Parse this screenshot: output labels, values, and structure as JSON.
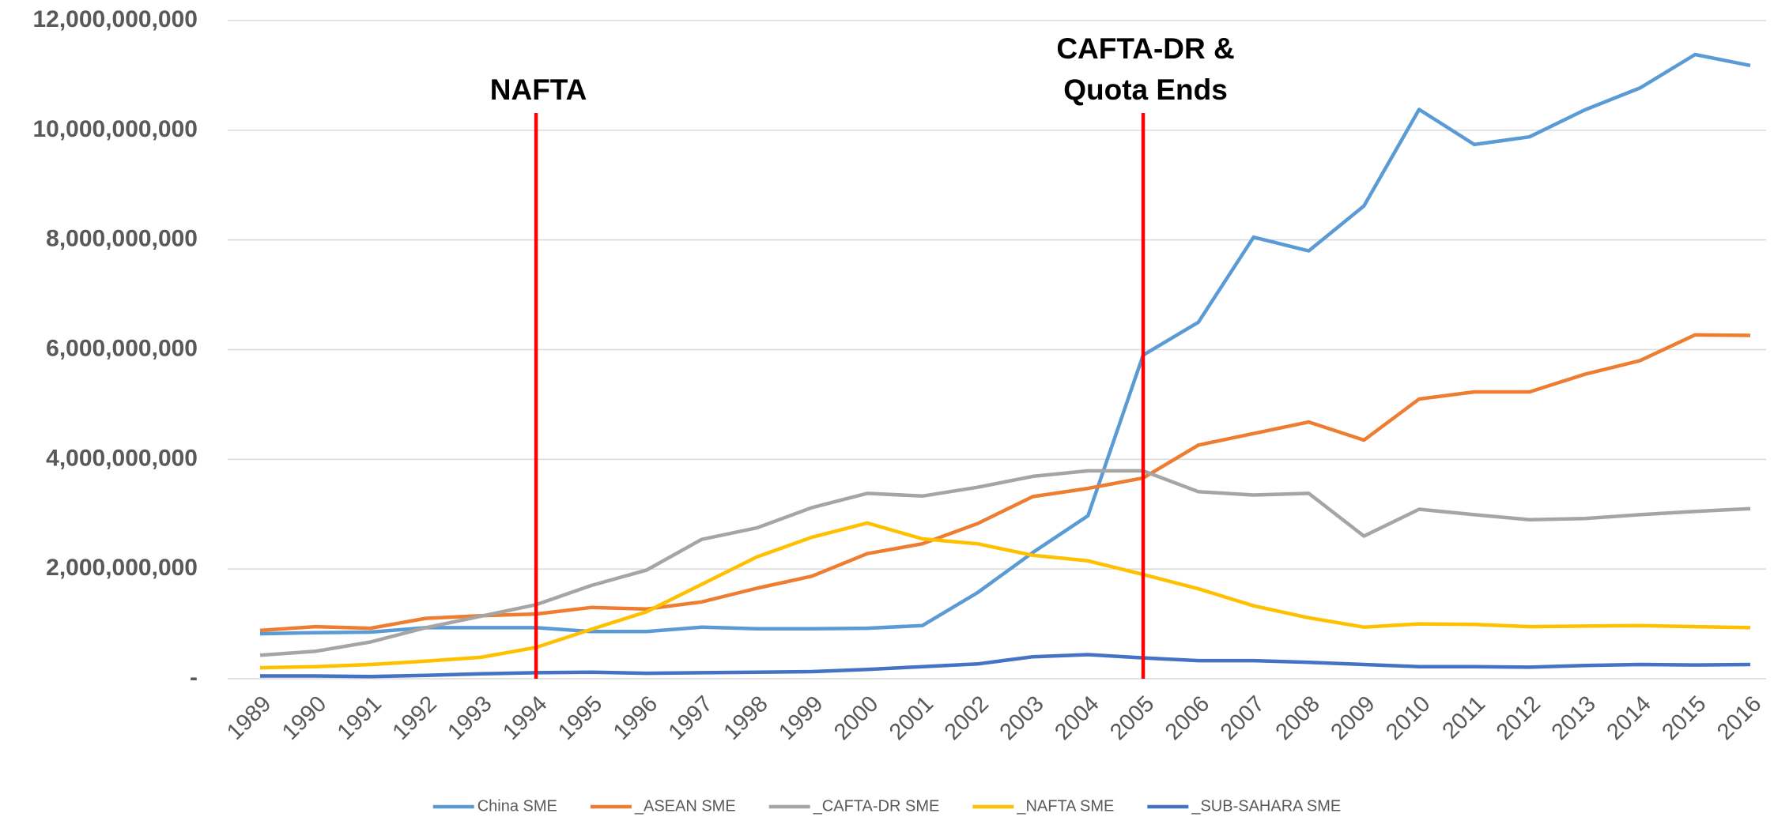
{
  "chart_data": {
    "type": "line",
    "categories": [
      "1989",
      "1990",
      "1991",
      "1992",
      "1993",
      "1994",
      "1995",
      "1996",
      "1997",
      "1998",
      "1999",
      "2000",
      "2001",
      "2002",
      "2003",
      "2004",
      "2005",
      "2006",
      "2007",
      "2008",
      "2009",
      "2010",
      "2011",
      "2012",
      "2013",
      "2014",
      "2015",
      "2016"
    ],
    "series": [
      {
        "name": "China SME",
        "color": "#5b9bd5",
        "values": [
          820000000,
          840000000,
          850000000,
          930000000,
          930000000,
          930000000,
          860000000,
          860000000,
          940000000,
          910000000,
          910000000,
          920000000,
          970000000,
          1570000000,
          2300000000,
          2970000000,
          5900000000,
          6500000000,
          8050000000,
          7800000000,
          8620000000,
          10380000000,
          9740000000,
          9880000000,
          10370000000,
          10770000000,
          11380000000,
          11180000000
        ]
      },
      {
        "name": "_ASEAN SME",
        "color": "#ed7d31",
        "values": [
          880000000,
          950000000,
          920000000,
          1100000000,
          1150000000,
          1180000000,
          1300000000,
          1270000000,
          1400000000,
          1650000000,
          1870000000,
          2280000000,
          2460000000,
          2830000000,
          3320000000,
          3470000000,
          3660000000,
          4260000000,
          4470000000,
          4680000000,
          4350000000,
          5100000000,
          5230000000,
          5230000000,
          5550000000,
          5800000000,
          6270000000,
          6260000000
        ]
      },
      {
        "name": "_CAFTA-DR SME",
        "color": "#a5a5a5",
        "values": [
          430000000,
          500000000,
          670000000,
          930000000,
          1140000000,
          1350000000,
          1700000000,
          1980000000,
          2540000000,
          2750000000,
          3120000000,
          3380000000,
          3330000000,
          3490000000,
          3690000000,
          3790000000,
          3790000000,
          3410000000,
          3350000000,
          3380000000,
          2600000000,
          3090000000,
          2990000000,
          2900000000,
          2920000000,
          2990000000,
          3050000000,
          3100000000
        ]
      },
      {
        "name": "_NAFTA SME",
        "color": "#ffc000",
        "values": [
          200000000,
          220000000,
          260000000,
          320000000,
          390000000,
          570000000,
          900000000,
          1220000000,
          1720000000,
          2220000000,
          2580000000,
          2840000000,
          2550000000,
          2460000000,
          2250000000,
          2150000000,
          1900000000,
          1640000000,
          1330000000,
          1110000000,
          940000000,
          1000000000,
          990000000,
          950000000,
          960000000,
          970000000,
          950000000,
          930000000
        ]
      },
      {
        "name": "_SUB-SAHARA SME",
        "color": "#4472c4",
        "values": [
          50000000,
          50000000,
          40000000,
          60000000,
          90000000,
          110000000,
          120000000,
          100000000,
          110000000,
          120000000,
          130000000,
          170000000,
          220000000,
          270000000,
          400000000,
          440000000,
          380000000,
          330000000,
          330000000,
          300000000,
          260000000,
          220000000,
          220000000,
          210000000,
          240000000,
          260000000,
          250000000,
          260000000
        ]
      }
    ],
    "ylim": [
      0,
      12000000000
    ],
    "yticks": [
      {
        "value": 0,
        "label": "-"
      },
      {
        "value": 2000000000,
        "label": "2,000,000,000"
      },
      {
        "value": 4000000000,
        "label": "4,000,000,000"
      },
      {
        "value": 6000000000,
        "label": "6,000,000,000"
      },
      {
        "value": 8000000000,
        "label": "8,000,000,000"
      },
      {
        "value": 10000000000,
        "label": "10,000,000,000"
      },
      {
        "value": 12000000000,
        "label": "12,000,000,000"
      }
    ],
    "grid": true,
    "legend": "bottom",
    "annotations": [
      {
        "x": "1994",
        "lines": [
          "NAFTA"
        ],
        "color": "#ff0000"
      },
      {
        "x": "2005",
        "lines": [
          "CAFTA-DR &",
          "Quota Ends"
        ],
        "color": "#ff0000"
      }
    ]
  }
}
